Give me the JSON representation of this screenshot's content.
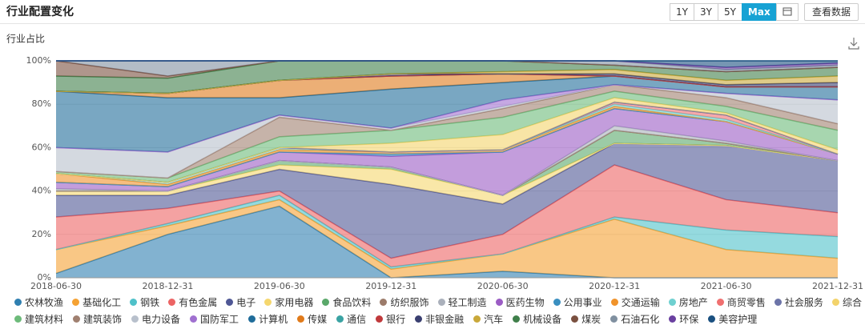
{
  "header": {
    "title": "行业配置变化",
    "buttons": [
      "1Y",
      "3Y",
      "5Y",
      "Max"
    ],
    "active": 3,
    "view_data": "查看数据"
  },
  "chart_data": {
    "type": "stacked-area",
    "ylabel": "行业占比",
    "x": [
      "2018-06-30",
      "2018-12-31",
      "2019-06-30",
      "2019-12-31",
      "2020-06-30",
      "2020-12-31",
      "2021-06-30",
      "2021-12-31"
    ],
    "ylim": [
      0,
      100
    ],
    "yticks": [
      {
        "value": 0,
        "label": "0%"
      },
      {
        "value": 20,
        "label": "20%"
      },
      {
        "value": 40,
        "label": "40%"
      },
      {
        "value": 60,
        "label": "60%"
      },
      {
        "value": 80,
        "label": "80%"
      },
      {
        "value": 100,
        "label": "100%"
      }
    ],
    "grid": true,
    "series": [
      {
        "name": "农林牧渔",
        "color": "#2f7fb0",
        "values": [
          2,
          20,
          33,
          0,
          3,
          0,
          0,
          0
        ]
      },
      {
        "name": "基础化工",
        "color": "#f5a233",
        "values": [
          11,
          4,
          3,
          4,
          8,
          27,
          13,
          9
        ]
      },
      {
        "name": "钢铁",
        "color": "#4fc1c9",
        "values": [
          0,
          1,
          2,
          1,
          0,
          1,
          9,
          10
        ]
      },
      {
        "name": "有色金属",
        "color": "#ec6464",
        "values": [
          15,
          7,
          2,
          4,
          9,
          24,
          14,
          11
        ]
      },
      {
        "name": "电子",
        "color": "#4f5795",
        "values": [
          10,
          6,
          10,
          34,
          14,
          10,
          25,
          24
        ]
      },
      {
        "name": "家用电器",
        "color": "#f5d76e",
        "values": [
          2,
          2,
          2,
          7,
          4,
          0,
          0,
          0
        ]
      },
      {
        "name": "食品饮料",
        "color": "#5aa86a",
        "values": [
          0,
          0,
          2,
          1,
          0,
          6,
          1,
          0
        ]
      },
      {
        "name": "纺织服饰",
        "color": "#9c7b6a",
        "values": [
          0,
          0,
          0,
          0,
          0,
          0,
          0,
          0
        ]
      },
      {
        "name": "轻工制造",
        "color": "#aab0bb",
        "values": [
          1,
          0,
          0,
          0,
          0,
          2,
          1,
          0
        ]
      },
      {
        "name": "医药生物",
        "color": "#9b5cc4",
        "values": [
          3,
          2,
          4,
          5,
          20,
          8,
          9,
          3
        ]
      },
      {
        "name": "公用事业",
        "color": "#3a8fc0",
        "values": [
          0,
          0,
          0,
          1,
          0,
          0,
          0,
          0
        ]
      },
      {
        "name": "交通运输",
        "color": "#f0932b",
        "values": [
          4,
          1,
          1,
          1,
          1,
          1,
          0,
          0
        ]
      },
      {
        "name": "房地产",
        "color": "#6fd0d0",
        "values": [
          0,
          1,
          1,
          0,
          0,
          1,
          1,
          0
        ]
      },
      {
        "name": "商贸零售",
        "color": "#f07070",
        "values": [
          0,
          0,
          0,
          0,
          0,
          1,
          2,
          0
        ]
      },
      {
        "name": "社会服务",
        "color": "#6c74a8",
        "values": [
          0,
          0,
          0,
          0,
          0,
          0,
          0,
          0
        ]
      },
      {
        "name": "综合",
        "color": "#f3d36b",
        "values": [
          0,
          0,
          0,
          4,
          7,
          2,
          1,
          2
        ]
      },
      {
        "name": "建筑材料",
        "color": "#6dbb7a",
        "values": [
          1,
          2,
          5,
          6,
          8,
          3,
          3,
          9
        ]
      },
      {
        "name": "建筑装饰",
        "color": "#a08070",
        "values": [
          0,
          0,
          9,
          0,
          4,
          3,
          4,
          3
        ]
      },
      {
        "name": "电力设备",
        "color": "#b8c0cc",
        "values": [
          11,
          12,
          1,
          1,
          1,
          0,
          2,
          11
        ]
      },
      {
        "name": "国防军工",
        "color": "#a070d0",
        "values": [
          0,
          0,
          0,
          0,
          3,
          0,
          0,
          0
        ]
      },
      {
        "name": "计算机",
        "color": "#1f6c9a",
        "values": [
          26,
          25,
          8,
          18,
          8,
          4,
          3,
          6
        ]
      },
      {
        "name": "传媒",
        "color": "#e07a1a",
        "values": [
          0,
          2,
          8,
          6,
          4,
          0,
          0,
          0
        ]
      },
      {
        "name": "通信",
        "color": "#3aa3a3",
        "values": [
          0,
          0,
          0,
          0,
          0,
          0,
          0,
          0
        ]
      },
      {
        "name": "银行",
        "color": "#c0393b",
        "values": [
          0,
          0,
          0,
          0,
          0,
          0,
          0,
          0
        ]
      },
      {
        "name": "非银金融",
        "color": "#3a3f70",
        "values": [
          0,
          0,
          0,
          1,
          0,
          1,
          1,
          2
        ]
      },
      {
        "name": "汽车",
        "color": "#c9a83a",
        "values": [
          0,
          0,
          0,
          0,
          1,
          2,
          2,
          3
        ]
      },
      {
        "name": "机械设备",
        "color": "#3f7f4a",
        "values": [
          7,
          7,
          9,
          6,
          5,
          2,
          4,
          4
        ]
      },
      {
        "name": "煤炭",
        "color": "#7a5040",
        "values": [
          7,
          1,
          0,
          0,
          0,
          0,
          0,
          0
        ]
      },
      {
        "name": "石油石化",
        "color": "#8090a0",
        "values": [
          0,
          7,
          0,
          0,
          0,
          2,
          1,
          1
        ]
      },
      {
        "name": "环保",
        "color": "#6a40a0",
        "values": [
          0,
          0,
          0,
          0,
          0,
          0,
          1,
          1
        ]
      },
      {
        "name": "美容护理",
        "color": "#1a5080",
        "values": [
          0,
          0,
          0,
          0,
          0,
          0,
          3,
          1
        ]
      }
    ]
  }
}
